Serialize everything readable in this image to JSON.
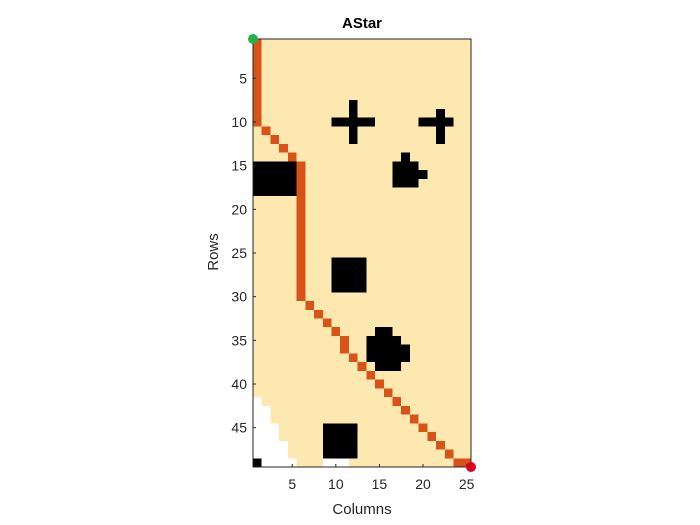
{
  "chart_data": {
    "type": "heatmap",
    "title": "AStar",
    "xlabel": "Columns",
    "ylabel": "Rows",
    "grid_size": {
      "rows": 49,
      "cols": 25
    },
    "xlim": [
      0.5,
      25.5
    ],
    "ylim": [
      0.5,
      49.5
    ],
    "y_reversed": true,
    "xticks": [
      5,
      10,
      15,
      20,
      25
    ],
    "yticks": [
      5,
      10,
      15,
      20,
      25,
      30,
      35,
      40,
      45
    ],
    "colors": {
      "explored": "#FDE8B0",
      "unexplored": "#FFFFFF",
      "obstacle": "#000000",
      "path": "#D95319",
      "start": "#22B14C",
      "goal": "#E0001B"
    },
    "start": {
      "row": 1,
      "col": 1
    },
    "goal": {
      "row": 49,
      "col": 25
    },
    "obstacles": [
      {
        "r0": 8,
        "r1": 12,
        "c0": 12,
        "c1": 12
      },
      {
        "r0": 10,
        "r1": 10,
        "c0": 10,
        "c1": 14
      },
      {
        "r0": 9,
        "r1": 12,
        "c0": 22,
        "c1": 22
      },
      {
        "r0": 10,
        "r1": 10,
        "c0": 20,
        "c1": 23
      },
      {
        "r0": 14,
        "r1": 14,
        "c0": 18,
        "c1": 18
      },
      {
        "r0": 15,
        "r1": 15,
        "c0": 17,
        "c1": 19
      },
      {
        "r0": 16,
        "r1": 16,
        "c0": 17,
        "c1": 20
      },
      {
        "r0": 17,
        "r1": 17,
        "c0": 17,
        "c1": 19
      },
      {
        "r0": 15,
        "r1": 18,
        "c0": 1,
        "c1": 5
      },
      {
        "r0": 26,
        "r1": 29,
        "c0": 10,
        "c1": 13
      },
      {
        "r0": 34,
        "r1": 34,
        "c0": 15,
        "c1": 16
      },
      {
        "r0": 35,
        "r1": 35,
        "c0": 14,
        "c1": 17
      },
      {
        "r0": 36,
        "r1": 37,
        "c0": 14,
        "c1": 18
      },
      {
        "r0": 38,
        "r1": 38,
        "c0": 15,
        "c1": 17
      },
      {
        "r0": 45,
        "r1": 48,
        "c0": 9,
        "c1": 12
      },
      {
        "r0": 49,
        "r1": 49,
        "c0": 1,
        "c1": 1
      }
    ],
    "unexplored_cells": [
      {
        "r0": 42,
        "r1": 42,
        "c0": 1,
        "c1": 1
      },
      {
        "r0": 43,
        "r1": 44,
        "c0": 1,
        "c1": 2
      },
      {
        "r0": 45,
        "r1": 46,
        "c0": 1,
        "c1": 3
      },
      {
        "r0": 47,
        "r1": 48,
        "c0": 1,
        "c1": 4
      },
      {
        "r0": 49,
        "r1": 49,
        "c0": 2,
        "c1": 5
      },
      {
        "r0": 49,
        "r1": 49,
        "c0": 9,
        "c1": 11
      }
    ],
    "path": [
      [
        1,
        1
      ],
      [
        2,
        1
      ],
      [
        3,
        1
      ],
      [
        4,
        1
      ],
      [
        5,
        1
      ],
      [
        6,
        1
      ],
      [
        7,
        1
      ],
      [
        8,
        1
      ],
      [
        9,
        1
      ],
      [
        10,
        1
      ],
      [
        11,
        2
      ],
      [
        12,
        3
      ],
      [
        13,
        4
      ],
      [
        14,
        5
      ],
      [
        15,
        6
      ],
      [
        16,
        6
      ],
      [
        17,
        6
      ],
      [
        18,
        6
      ],
      [
        19,
        6
      ],
      [
        20,
        6
      ],
      [
        21,
        6
      ],
      [
        22,
        6
      ],
      [
        23,
        6
      ],
      [
        24,
        6
      ],
      [
        25,
        6
      ],
      [
        26,
        6
      ],
      [
        27,
        6
      ],
      [
        28,
        6
      ],
      [
        29,
        6
      ],
      [
        30,
        6
      ],
      [
        31,
        7
      ],
      [
        32,
        8
      ],
      [
        33,
        9
      ],
      [
        34,
        10
      ],
      [
        35,
        11
      ],
      [
        36,
        11
      ],
      [
        37,
        12
      ],
      [
        38,
        13
      ],
      [
        39,
        14
      ],
      [
        40,
        15
      ],
      [
        41,
        16
      ],
      [
        42,
        17
      ],
      [
        43,
        18
      ],
      [
        44,
        19
      ],
      [
        45,
        20
      ],
      [
        46,
        21
      ],
      [
        47,
        22
      ],
      [
        48,
        23
      ],
      [
        49,
        24
      ],
      [
        49,
        25
      ]
    ]
  }
}
